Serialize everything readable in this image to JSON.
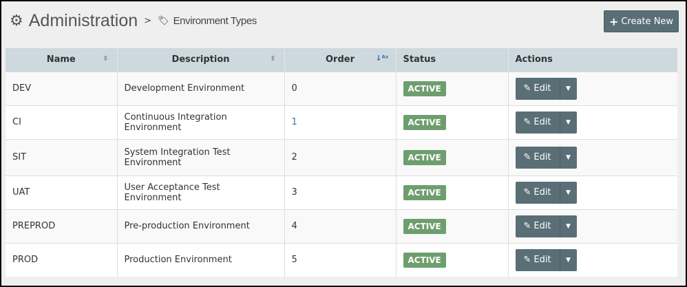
{
  "header": {
    "title": "Administration",
    "separator": ">",
    "breadcrumb": "Environment Types",
    "gear_icon": "gear-icon",
    "tag_icon": "tag-icon"
  },
  "toolbar": {
    "create_label": "Create New"
  },
  "table": {
    "columns": [
      "Name",
      "Description",
      "Order",
      "Status",
      "Actions"
    ],
    "sorted_column": "Order",
    "rows": [
      {
        "name": "DEV",
        "description": "Development Environment",
        "order": "0",
        "status": "ACTIVE",
        "action": "Edit"
      },
      {
        "name": "CI",
        "description": "Continuous Integration Environment",
        "order": "1",
        "status": "ACTIVE",
        "action": "Edit"
      },
      {
        "name": "SIT",
        "description": "System Integration Test Environment",
        "order": "2",
        "status": "ACTIVE",
        "action": "Edit"
      },
      {
        "name": "UAT",
        "description": "User Acceptance Test Environment",
        "order": "3",
        "status": "ACTIVE",
        "action": "Edit"
      },
      {
        "name": "PREPROD",
        "description": "Pre-production Environment",
        "order": "4",
        "status": "ACTIVE",
        "action": "Edit"
      },
      {
        "name": "PROD",
        "description": "Production Environment",
        "order": "5",
        "status": "ACTIVE",
        "action": "Edit"
      }
    ]
  },
  "colors": {
    "button": "#5a6e76",
    "active": "#6e9e6e",
    "header": "#cdd9de"
  }
}
